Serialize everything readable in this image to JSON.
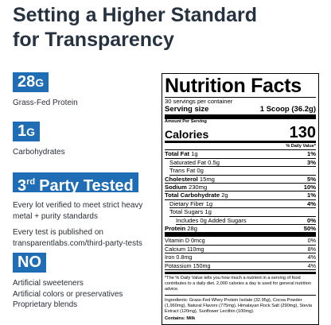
{
  "header": {
    "title_lines": [
      "Setting a Higher Standard",
      "for Transparency"
    ]
  },
  "features": [
    {
      "badge": [
        "28",
        "G"
      ],
      "lines": [
        "Grass-Fed Protein"
      ]
    },
    {
      "badge": [
        "1",
        "G"
      ],
      "lines": [
        "Carbohydrates"
      ]
    },
    {
      "badge": [
        "3",
        "rd",
        "Party Tested"
      ],
      "lines": [
        "Every lot verified to meet strict heavy metal + purity standards",
        "Every test is published on transparentlabs.com/third-party-tests"
      ]
    },
    {
      "badge": [
        "NO"
      ],
      "lines": [
        "Artificial sweeteners",
        "Artificial colors or preservatives",
        "Proprietary blends"
      ]
    }
  ],
  "nutrition": {
    "title": "Nutrition Facts",
    "servings": "30 servings per container",
    "serving_size_label": "Serving size",
    "serving_size": "1 Scoop (36.2g)",
    "amount_per_serving": "Amount Per Serving",
    "calories_label": "Calories",
    "calories": "130",
    "dv_header": "% Daily Value*",
    "rows": [
      {
        "name": "Total Fat",
        "amount": "1g",
        "dv": "1%"
      },
      {
        "name": "Saturated Fat",
        "amount": "0.5g",
        "dv": "3%"
      },
      {
        "name": "Trans Fat",
        "amount": "0g"
      },
      {
        "name": "Cholesterol",
        "amount": "15mg",
        "dv": "5%"
      },
      {
        "name": "Sodium",
        "amount": "230mg",
        "dv": "10%"
      },
      {
        "name": "Total Carbohydrate",
        "amount": "2g",
        "dv": "1%"
      },
      {
        "name": "Dietary Fiber",
        "amount": "1g",
        "dv": "4%"
      },
      {
        "name": "Total Sugars",
        "amount": "1g"
      },
      {
        "name": "Includes 0g Added Sugars",
        "dv": "0%"
      },
      {
        "name": "Protein",
        "amount": "28g",
        "dv": "50%"
      }
    ],
    "vitamins": [
      {
        "name": "Vitamin D",
        "amount": "0mcg",
        "dv": "0%"
      },
      {
        "name": "Calcium",
        "amount": "110mg",
        "dv": "8%"
      },
      {
        "name": "Iron",
        "amount": "0.8mg",
        "dv": "4%"
      },
      {
        "name": "Potassium",
        "amount": "150mg",
        "dv": "4%"
      }
    ],
    "footnote": "*The % Daily Value tells you how much a nutrient in a serving of food contributes to a daily diet. 2,000 calories a day is used for general nutrition advice.",
    "ingredients": "Ingredients: Grass-Fed Whey Protein Isolate (32.95g), Cocoa Powder (1,960mg), Natural Flavors (775mg), Himalayan Rock Salt (290mg), Stevia Extract (120mg), Sunflower Lecithin (100mg).",
    "contains": "Contains: Milk"
  }
}
